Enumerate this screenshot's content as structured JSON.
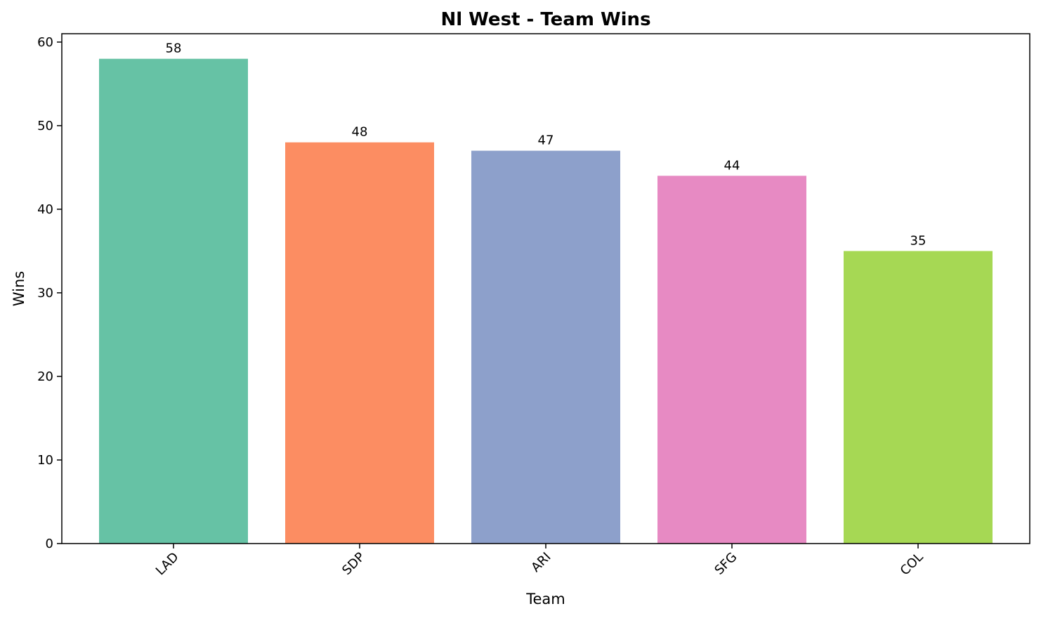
{
  "chart_data": {
    "type": "bar",
    "title": "Nl West - Team Wins",
    "xlabel": "Team",
    "ylabel": "Wins",
    "categories": [
      "LAD",
      "SDP",
      "ARI",
      "SFG",
      "COL"
    ],
    "values": [
      58,
      48,
      47,
      44,
      35
    ],
    "colors": [
      "#66c2a5",
      "#fc8d62",
      "#8da0cb",
      "#e78ac3",
      "#a6d854"
    ],
    "ylim": [
      0,
      61
    ],
    "yticks": [
      0,
      10,
      20,
      30,
      40,
      50,
      60
    ],
    "grid": false,
    "legend": false
  }
}
